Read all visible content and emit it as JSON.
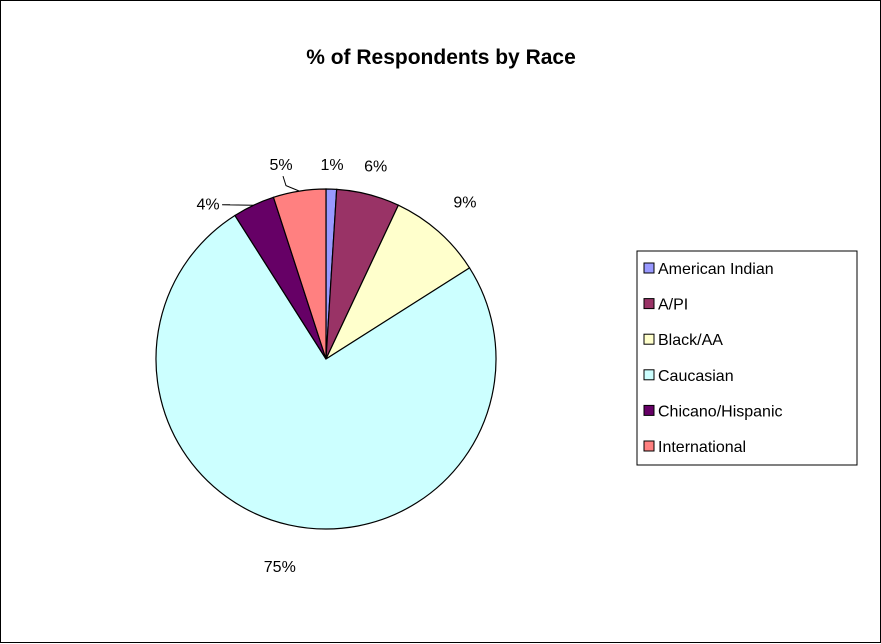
{
  "chart_data": {
    "type": "pie",
    "title": "% of Respondents by Race",
    "categories": [
      "American Indian",
      "A/PI",
      "Black/AA",
      "Caucasian",
      "Chicano/Hispanic",
      "International"
    ],
    "values": [
      1,
      6,
      9,
      75,
      4,
      5
    ],
    "value_labels": [
      "1%",
      "6%",
      "9%",
      "75%",
      "4%",
      "5%"
    ],
    "colors": [
      "#9999FF",
      "#993366",
      "#FFFFCC",
      "#CCFFFF",
      "#660066",
      "#FF8080"
    ],
    "legend_position": "right",
    "start_angle_deg": 0,
    "direction": "clockwise"
  }
}
